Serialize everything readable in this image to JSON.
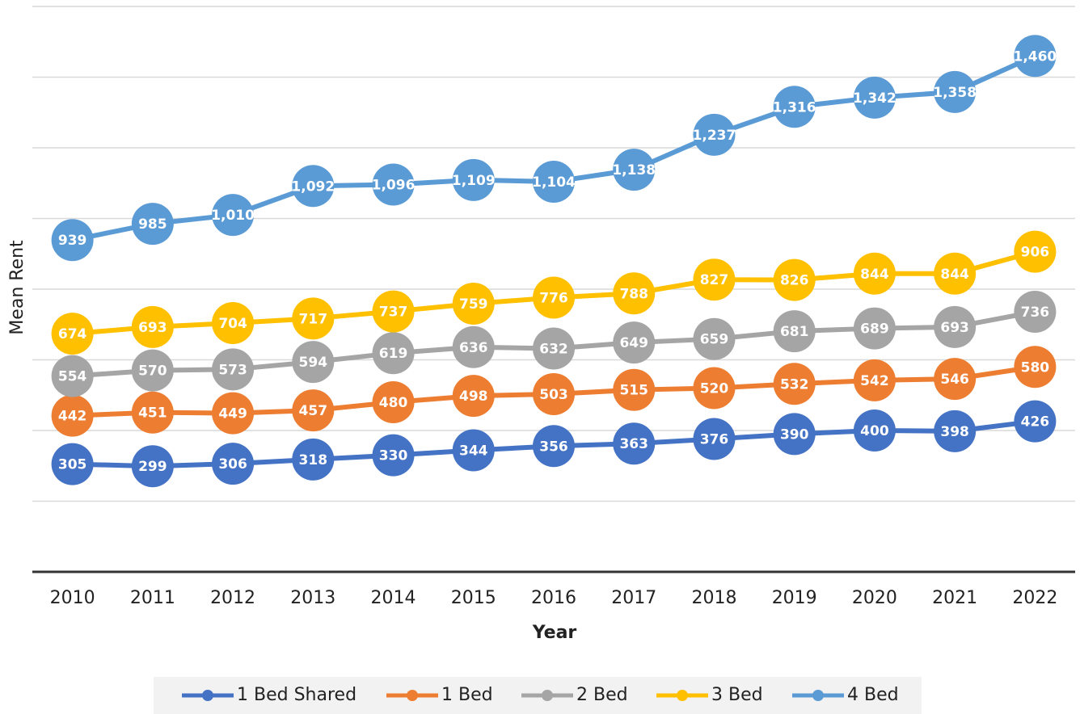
{
  "chart_data": {
    "type": "line",
    "y_label": "Mean Rent",
    "x_label": "Year",
    "categories": [
      "2010",
      "2011",
      "2012",
      "2013",
      "2014",
      "2015",
      "2016",
      "2017",
      "2018",
      "2019",
      "2020",
      "2021",
      "2022"
    ],
    "ylim": [
      0,
      1600
    ],
    "yticks": [
      0,
      200,
      400,
      600,
      800,
      1000,
      1200,
      1400,
      1600
    ],
    "grid": true,
    "series": [
      {
        "name": "1 Bed Shared",
        "color": "#4472c4",
        "values": [
          305,
          299,
          306,
          318,
          330,
          344,
          356,
          363,
          376,
          390,
          400,
          398,
          426
        ]
      },
      {
        "name": "1 Bed",
        "color": "#ed7d31",
        "values": [
          442,
          451,
          449,
          457,
          480,
          498,
          503,
          515,
          520,
          532,
          542,
          546,
          580
        ]
      },
      {
        "name": "2 Bed",
        "color": "#a5a5a5",
        "values": [
          554,
          570,
          573,
          594,
          619,
          636,
          632,
          649,
          659,
          681,
          689,
          693,
          736
        ]
      },
      {
        "name": "3 Bed",
        "color": "#ffc000",
        "values": [
          674,
          693,
          704,
          717,
          737,
          759,
          776,
          788,
          827,
          826,
          844,
          844,
          906
        ]
      },
      {
        "name": "4 Bed",
        "color": "#5b9bd5",
        "values": [
          939,
          985,
          1010,
          1092,
          1096,
          1109,
          1104,
          1138,
          1237,
          1316,
          1342,
          1358,
          1460
        ],
        "value_labels": [
          "939",
          "985",
          "1,010",
          "1,092",
          "1,096",
          "1,109",
          "1,104",
          "1,138",
          "1,237",
          "1,316",
          "1,342",
          "1,358",
          "1,460"
        ]
      }
    ]
  }
}
